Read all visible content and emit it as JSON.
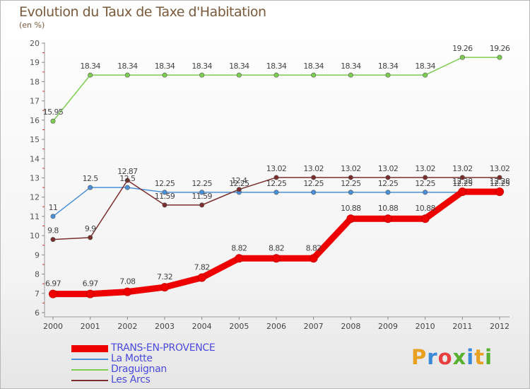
{
  "title": "Evolution du Taux de Taxe d'Habitation",
  "subtitle": "(en %)",
  "logo": {
    "letters": [
      "P",
      "r",
      "o",
      "x",
      "i",
      "t",
      "i"
    ],
    "colors": [
      "#e8a020",
      "#3a8ad8",
      "#e84040",
      "#58b030",
      "#3a8ad8",
      "#e8a020",
      "#58b030"
    ]
  },
  "chart_data": {
    "type": "line",
    "title": "Evolution du Taux de Taxe d'Habitation",
    "ylabel": "(en %)",
    "xlabel": "",
    "x": [
      "2000",
      "2001",
      "2002",
      "2003",
      "2004",
      "2005",
      "2006",
      "2007",
      "2008",
      "2009",
      "2010",
      "2011",
      "2012"
    ],
    "ylim": [
      6,
      20
    ],
    "yticks": [
      "6",
      "7",
      "8",
      "9",
      "10",
      "11",
      "12",
      "13",
      "14",
      "15",
      "16",
      "17",
      "18",
      "19",
      "20"
    ],
    "grid": false,
    "legend_position": "bottom-left",
    "series": [
      {
        "name": "TRANS-EN-PROVENCE",
        "color": "#ee0000",
        "values": [
          6.97,
          6.97,
          7.08,
          7.32,
          7.82,
          8.82,
          8.82,
          8.82,
          10.88,
          10.88,
          10.88,
          12.28,
          12.28
        ],
        "labels": [
          "6.97",
          "6.97",
          "7.08",
          "7.32",
          "7.82",
          "8.82",
          "8.82",
          "8.82",
          "10.88",
          "10.88",
          "10.88",
          "12.28",
          "12.28"
        ]
      },
      {
        "name": "La Motte",
        "color": "#4a90d9",
        "values": [
          11,
          12.5,
          12.5,
          12.25,
          12.25,
          12.25,
          12.25,
          12.25,
          12.25,
          12.25,
          12.25,
          12.25,
          12.25
        ],
        "labels": [
          "11",
          "12.5",
          "12.5",
          "12.25",
          "12.25",
          "12.25",
          "12.25",
          "12.25",
          "12.25",
          "12.25",
          "12.25",
          "12.25",
          "12.25"
        ]
      },
      {
        "name": "Draguignan",
        "color": "#7ccd50",
        "values": [
          15.95,
          18.34,
          18.34,
          18.34,
          18.34,
          18.34,
          18.34,
          18.34,
          18.34,
          18.34,
          18.34,
          19.26,
          19.26
        ],
        "labels": [
          "15.95",
          "18.34",
          "18.34",
          "18.34",
          "18.34",
          "18.34",
          "18.34",
          "18.34",
          "18.34",
          "18.34",
          "18.34",
          "19.26",
          "19.26"
        ]
      },
      {
        "name": "Les Arcs",
        "color": "#7a2e2e",
        "values": [
          9.8,
          9.9,
          12.87,
          11.59,
          11.59,
          12.4,
          13.02,
          13.02,
          13.02,
          13.02,
          13.02,
          13.02,
          13.02
        ],
        "labels": [
          "9.8",
          "9.9",
          "12.87",
          "11.59",
          "11.59",
          "12.4",
          "13.02",
          "13.02",
          "13.02",
          "13.02",
          "13.02",
          "13.02",
          "13.02"
        ]
      }
    ]
  }
}
